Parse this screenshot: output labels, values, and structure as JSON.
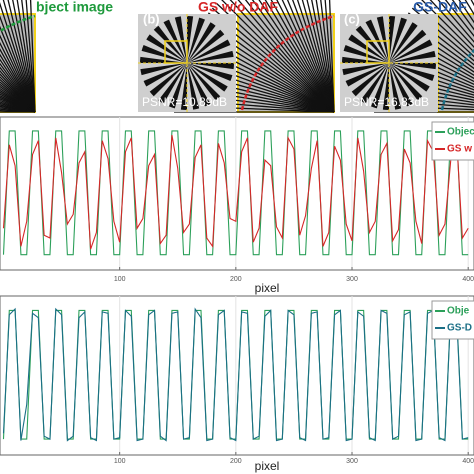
{
  "panels": [
    {
      "title": "bject image"
    },
    {
      "label": "(b)",
      "title": "GS w/o DAF",
      "psnr": "PSNR=10.89dB"
    },
    {
      "label": "(c)",
      "title": "GS-DAF",
      "psnr": "PSNR=16.83dB"
    }
  ],
  "chart_data": [
    {
      "type": "line",
      "xlabel": "pixel",
      "x": [
        0,
        5,
        10,
        15,
        20,
        25,
        30,
        35,
        40,
        45,
        50,
        55,
        60,
        65,
        70,
        75,
        80,
        85,
        90,
        95,
        100,
        105,
        110,
        115,
        120,
        125,
        130,
        135,
        140,
        145,
        150,
        155,
        160,
        165,
        170,
        175,
        180,
        185,
        190,
        195,
        200,
        205,
        210,
        215,
        220,
        225,
        230,
        235,
        240,
        245,
        250,
        255,
        260,
        265,
        270,
        275,
        280,
        285,
        290,
        295,
        300,
        305,
        310,
        315,
        320,
        325,
        330,
        335,
        340,
        345,
        350,
        355,
        360,
        365,
        370,
        375,
        380,
        385,
        390,
        395,
        400
      ],
      "xlim": [
        -3,
        405
      ],
      "xticks": [
        100,
        200,
        300,
        400
      ],
      "ylim": [
        -0.05,
        1.05
      ],
      "grid": true,
      "series": [
        {
          "name": "Objec",
          "color": "#2ca05a",
          "values": [
            0.06,
            0.95,
            0.95,
            0.06,
            0.06,
            0.95,
            0.95,
            0.06,
            0.06,
            0.95,
            0.95,
            0.06,
            0.06,
            0.95,
            0.95,
            0.06,
            0.06,
            0.95,
            0.95,
            0.06,
            0.06,
            0.95,
            0.95,
            0.06,
            0.06,
            0.95,
            0.95,
            0.06,
            0.06,
            0.95,
            0.95,
            0.06,
            0.06,
            0.95,
            0.95,
            0.06,
            0.06,
            0.95,
            0.95,
            0.06,
            0.06,
            0.95,
            0.95,
            0.06,
            0.06,
            0.95,
            0.95,
            0.06,
            0.06,
            0.95,
            0.95,
            0.06,
            0.06,
            0.95,
            0.95,
            0.06,
            0.06,
            0.95,
            0.95,
            0.06,
            0.06,
            0.95,
            0.95,
            0.06,
            0.06,
            0.95,
            0.95,
            0.06,
            0.06,
            0.95,
            0.95,
            0.06,
            0.06,
            0.95,
            0.95,
            0.06,
            0.06,
            0.95,
            0.95,
            0.06,
            0.06
          ]
        },
        {
          "name": "GS w",
          "color": "#d62728",
          "values": [
            0.25,
            0.85,
            0.7,
            0.12,
            0.3,
            0.78,
            0.88,
            0.2,
            0.18,
            0.9,
            0.65,
            0.28,
            0.35,
            0.72,
            0.8,
            0.1,
            0.22,
            0.88,
            0.75,
            0.3,
            0.15,
            0.8,
            0.9,
            0.25,
            0.32,
            0.7,
            0.78,
            0.14,
            0.2,
            0.92,
            0.68,
            0.22,
            0.28,
            0.76,
            0.85,
            0.18,
            0.12,
            0.86,
            0.72,
            0.32,
            0.3,
            0.8,
            0.9,
            0.15,
            0.25,
            0.74,
            0.7,
            0.26,
            0.18,
            0.9,
            0.82,
            0.2,
            0.34,
            0.68,
            0.88,
            0.12,
            0.22,
            0.84,
            0.74,
            0.28,
            0.16,
            0.9,
            0.66,
            0.22,
            0.3,
            0.78,
            0.86,
            0.16,
            0.24,
            0.82,
            0.72,
            0.3,
            0.14,
            0.88,
            0.8,
            0.2,
            0.28,
            0.74,
            0.9,
            0.18,
            0.25
          ]
        }
      ],
      "legend": "upper right"
    },
    {
      "type": "line",
      "xlabel": "pixel",
      "x": [
        0,
        5,
        10,
        15,
        20,
        25,
        30,
        35,
        40,
        45,
        50,
        55,
        60,
        65,
        70,
        75,
        80,
        85,
        90,
        95,
        100,
        105,
        110,
        115,
        120,
        125,
        130,
        135,
        140,
        145,
        150,
        155,
        160,
        165,
        170,
        175,
        180,
        185,
        190,
        195,
        200,
        205,
        210,
        215,
        220,
        225,
        230,
        235,
        240,
        245,
        250,
        255,
        260,
        265,
        270,
        275,
        280,
        285,
        290,
        295,
        300,
        305,
        310,
        315,
        320,
        325,
        330,
        335,
        340,
        345,
        350,
        355,
        360,
        365,
        370,
        375,
        380,
        385,
        390,
        395,
        400
      ],
      "xlim": [
        -3,
        405
      ],
      "xticks": [
        100,
        200,
        300,
        400
      ],
      "ylim": [
        -0.05,
        1.05
      ],
      "grid": true,
      "series": [
        {
          "name": "Obje",
          "color": "#2ca05a",
          "values": [
            0.06,
            0.95,
            0.95,
            0.06,
            0.06,
            0.95,
            0.95,
            0.06,
            0.06,
            0.95,
            0.95,
            0.06,
            0.06,
            0.95,
            0.95,
            0.06,
            0.06,
            0.95,
            0.95,
            0.06,
            0.06,
            0.95,
            0.95,
            0.06,
            0.06,
            0.95,
            0.95,
            0.06,
            0.06,
            0.95,
            0.95,
            0.06,
            0.06,
            0.95,
            0.95,
            0.06,
            0.06,
            0.95,
            0.95,
            0.06,
            0.06,
            0.95,
            0.95,
            0.06,
            0.06,
            0.95,
            0.95,
            0.06,
            0.06,
            0.95,
            0.95,
            0.06,
            0.06,
            0.95,
            0.95,
            0.06,
            0.06,
            0.95,
            0.95,
            0.06,
            0.06,
            0.95,
            0.95,
            0.06,
            0.06,
            0.95,
            0.95,
            0.06,
            0.06,
            0.95,
            0.95,
            0.06,
            0.06,
            0.95,
            0.95,
            0.06,
            0.06,
            0.95,
            0.95,
            0.06,
            0.06
          ]
        },
        {
          "name": "GS-D",
          "color": "#1b6f86",
          "values": [
            0.1,
            0.92,
            0.96,
            0.05,
            0.3,
            0.93,
            0.9,
            0.08,
            0.06,
            0.96,
            0.92,
            0.05,
            0.08,
            0.9,
            0.94,
            0.07,
            0.05,
            0.94,
            0.93,
            0.06,
            0.07,
            0.95,
            0.91,
            0.05,
            0.06,
            0.92,
            0.95,
            0.08,
            0.05,
            0.93,
            0.94,
            0.06,
            0.07,
            0.96,
            0.9,
            0.05,
            0.06,
            0.92,
            0.95,
            0.07,
            0.05,
            0.94,
            0.93,
            0.06,
            0.08,
            0.91,
            0.95,
            0.05,
            0.06,
            0.95,
            0.92,
            0.07,
            0.05,
            0.93,
            0.94,
            0.06,
            0.07,
            0.92,
            0.95,
            0.05,
            0.06,
            0.94,
            0.91,
            0.07,
            0.05,
            0.95,
            0.93,
            0.06,
            0.08,
            0.92,
            0.94,
            0.05,
            0.06,
            0.93,
            0.95,
            0.07,
            0.05,
            0.94,
            0.92,
            0.06,
            0.07
          ]
        }
      ],
      "legend": "upper right"
    }
  ]
}
